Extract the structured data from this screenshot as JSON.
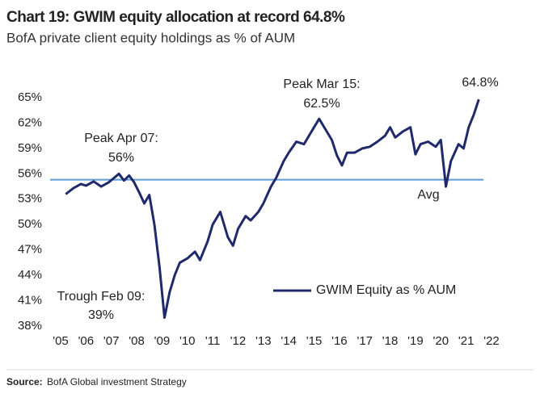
{
  "chart_data": {
    "type": "line",
    "title": "Chart 19: GWIM equity allocation at record 64.8%",
    "subtitle": "BofA private client equity holdings as % of AUM",
    "source_label": "Source:",
    "source": "BofA Global investment Strategy",
    "xlim": [
      2005,
      2022
    ],
    "xticks": [
      {
        "value": 2005,
        "label": "'05"
      },
      {
        "value": 2006,
        "label": "'06"
      },
      {
        "value": 2007,
        "label": "'07"
      },
      {
        "value": 2008,
        "label": "'08"
      },
      {
        "value": 2009,
        "label": "'09"
      },
      {
        "value": 2010,
        "label": "'10"
      },
      {
        "value": 2011,
        "label": "'11"
      },
      {
        "value": 2012,
        "label": "'12"
      },
      {
        "value": 2013,
        "label": "'13"
      },
      {
        "value": 2014,
        "label": "'14"
      },
      {
        "value": 2015,
        "label": "'15"
      },
      {
        "value": 2016,
        "label": "'16"
      },
      {
        "value": 2017,
        "label": "'17"
      },
      {
        "value": 2018,
        "label": "'18"
      },
      {
        "value": 2019,
        "label": "'19"
      },
      {
        "value": 2020,
        "label": "'20"
      },
      {
        "value": 2021,
        "label": "'21"
      },
      {
        "value": 2022,
        "label": "'22"
      }
    ],
    "ylim": [
      38,
      65
    ],
    "yticks": [
      {
        "value": 38,
        "label": "38%"
      },
      {
        "value": 41,
        "label": "41%"
      },
      {
        "value": 44,
        "label": "44%"
      },
      {
        "value": 47,
        "label": "47%"
      },
      {
        "value": 50,
        "label": "50%"
      },
      {
        "value": 53,
        "label": "53%"
      },
      {
        "value": 56,
        "label": "56%"
      },
      {
        "value": 59,
        "label": "59%"
      },
      {
        "value": 62,
        "label": "62%"
      },
      {
        "value": 65,
        "label": "65%"
      }
    ],
    "grid": false,
    "legend": "lower right",
    "average": {
      "label": "Avg",
      "value": 55.3,
      "color": "#5b9bd5"
    },
    "annotations": [
      "Peak Apr 07:",
      "56%",
      "Trough Feb 09:",
      "39%",
      "Peak Mar 15:",
      "62.5%",
      "64.8%"
    ],
    "x": [
      2005.2,
      2005.5,
      2005.8,
      2006.0,
      2006.3,
      2006.6,
      2006.9,
      2007.1,
      2007.3,
      2007.5,
      2007.7,
      2007.9,
      2008.1,
      2008.3,
      2008.5,
      2008.7,
      2008.9,
      2009.1,
      2009.3,
      2009.5,
      2009.7,
      2010.0,
      2010.3,
      2010.5,
      2010.8,
      2011.0,
      2011.3,
      2011.6,
      2011.8,
      2012.0,
      2012.3,
      2012.5,
      2012.8,
      2013.0,
      2013.3,
      2013.5,
      2013.8,
      2014.0,
      2014.3,
      2014.6,
      2014.9,
      2015.2,
      2015.5,
      2015.7,
      2015.9,
      2016.1,
      2016.3,
      2016.6,
      2016.9,
      2017.2,
      2017.5,
      2017.8,
      2018.0,
      2018.2,
      2018.5,
      2018.8,
      2019.0,
      2019.2,
      2019.5,
      2019.8,
      2020.0,
      2020.2,
      2020.4,
      2020.7,
      2020.9,
      2021.1,
      2021.3,
      2021.5
    ],
    "series": [
      {
        "name": "GWIM Equity as % AUM",
        "color": "#1f2a6b",
        "values": [
          53.6,
          54.3,
          54.8,
          54.6,
          55.1,
          54.5,
          55.0,
          55.5,
          56.0,
          55.2,
          55.8,
          55.0,
          53.8,
          52.5,
          53.5,
          50.0,
          45.0,
          39.0,
          42.0,
          44.0,
          45.5,
          46.0,
          46.8,
          45.8,
          48.0,
          50.0,
          51.5,
          48.5,
          47.5,
          49.5,
          51.0,
          50.5,
          51.5,
          52.5,
          54.5,
          55.5,
          57.5,
          58.5,
          59.8,
          59.5,
          61.0,
          62.5,
          61.0,
          60.0,
          58.2,
          57.0,
          58.5,
          58.5,
          59.0,
          59.2,
          59.8,
          60.5,
          61.5,
          60.3,
          61.0,
          61.5,
          58.3,
          59.5,
          59.8,
          59.2,
          60.0,
          54.5,
          57.5,
          59.5,
          59.0,
          61.5,
          63.0,
          64.8
        ]
      }
    ]
  }
}
